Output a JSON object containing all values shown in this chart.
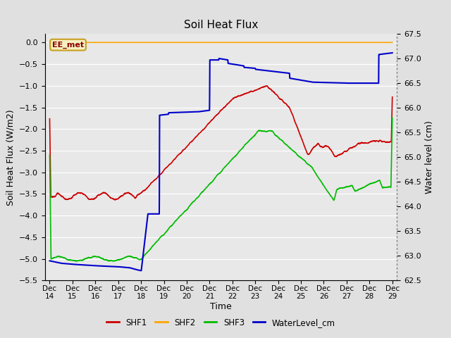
{
  "title": "Soil Heat Flux",
  "xlabel": "Time",
  "ylabel_left": "Soil Heat Flux (W/m2)",
  "ylabel_right": "Water level (cm)",
  "ylim_left": [
    -5.5,
    0.2
  ],
  "ylim_right": [
    62.5,
    67.5
  ],
  "background_color": "#e0e0e0",
  "plot_bg_color": "#e8e8e8",
  "grid_color": "white",
  "annotation_text": "EE_met",
  "annotation_bg": "#f5f0c0",
  "annotation_border": "#c8a020",
  "annotation_text_color": "#8b0000",
  "shf2_color": "#ffa500",
  "shf1_color": "#cc0000",
  "shf3_color": "#00bb00",
  "water_color": "#0000cc",
  "x_start": 13.8,
  "x_end": 29.2,
  "x_ticks": [
    14,
    15,
    16,
    17,
    18,
    19,
    20,
    21,
    22,
    23,
    24,
    25,
    26,
    27,
    28,
    29
  ],
  "x_tick_labels": [
    "Dec 14",
    "Dec 15",
    "Dec 16",
    "Dec 17",
    "Dec 18",
    "Dec 19",
    "Dec 20",
    "Dec 21",
    "Dec 22",
    "Dec 23",
    "Dec 24",
    "Dec 25",
    "Dec 26",
    "Dec 27",
    "Dec 28",
    "Dec 29"
  ]
}
